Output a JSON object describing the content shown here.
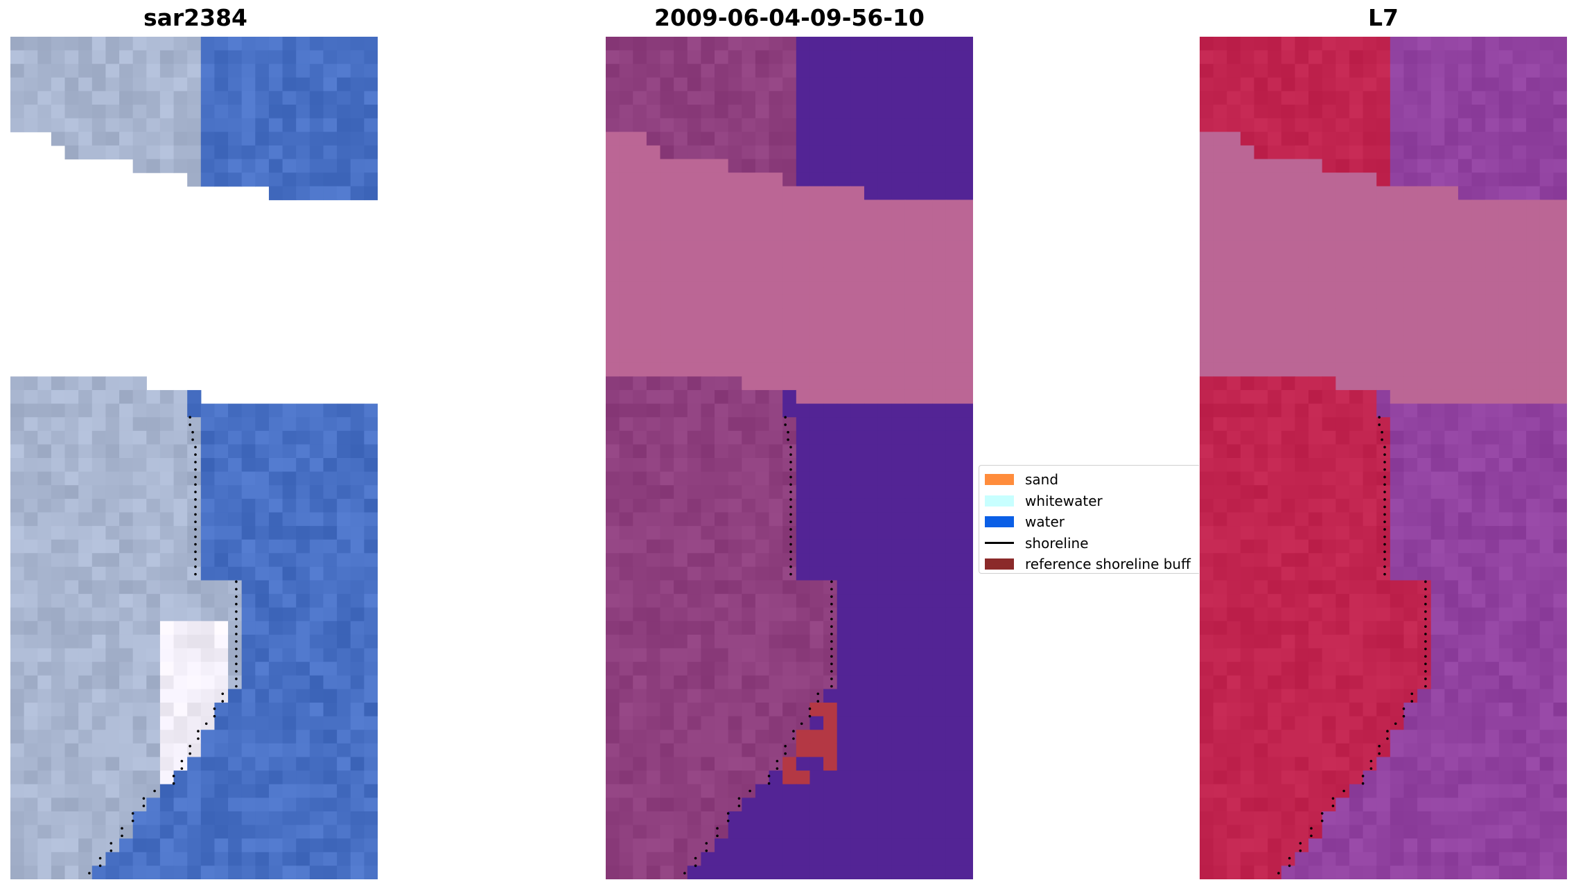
{
  "panels": [
    {
      "title": "sar2384",
      "kind": "rgb"
    },
    {
      "title": "2009-06-04-09-56-10",
      "kind": "classified"
    },
    {
      "title": "L7",
      "kind": "index"
    }
  ],
  "legend": {
    "items": [
      {
        "label": "sand",
        "color": "#ff8c3c",
        "marker": "patch"
      },
      {
        "label": "whitewater",
        "color": "#c8ffff",
        "marker": "patch"
      },
      {
        "label": "water",
        "color": "#0b5fe6",
        "marker": "patch"
      },
      {
        "label": "shoreline",
        "color": "#000000",
        "marker": "line"
      },
      {
        "label": "reference shoreline buff",
        "color": "#8b2a2a",
        "marker": "patch"
      }
    ]
  },
  "colors": {
    "rgb_land": "#a9b6d0",
    "rgb_water": "#4870c4",
    "rgb_white": "#f2eef8",
    "class_land": "#8e3f7e",
    "class_water": "#532495",
    "class_nodata": "#bb6695",
    "class_buffer": "#b43844",
    "index_land": "#c1244f",
    "index_water": "#9142a0",
    "index_nodata": "#bb6695",
    "shoreline_dots": "#000000"
  }
}
